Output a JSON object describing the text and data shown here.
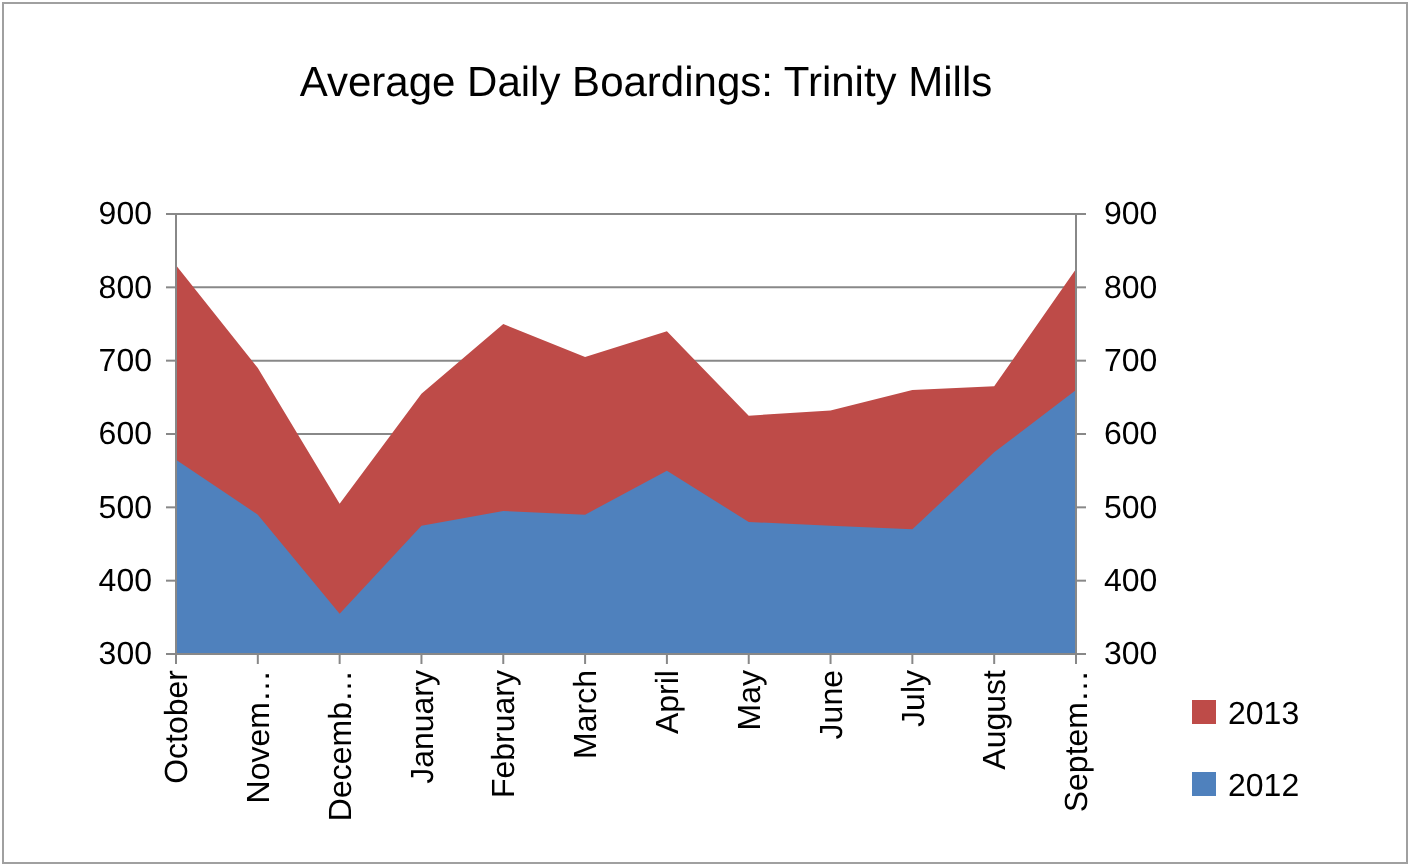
{
  "chart_data": {
    "type": "area",
    "title": "Average Daily Boardings: Trinity Mills",
    "categories": [
      "October",
      "Novem…",
      "Decemb…",
      "January",
      "February",
      "March",
      "April",
      "May",
      "June",
      "July",
      "August",
      "Septem…"
    ],
    "series": [
      {
        "name": "2013",
        "color": "#be4b48",
        "values": [
          830,
          690,
          505,
          655,
          750,
          705,
          740,
          625,
          632,
          660,
          665,
          825
        ]
      },
      {
        "name": "2012",
        "color": "#4f81bd",
        "values": [
          565,
          490,
          355,
          475,
          495,
          490,
          550,
          480,
          475,
          470,
          575,
          660
        ]
      }
    ],
    "ylim": [
      300,
      900
    ],
    "yticks": [
      300,
      400,
      500,
      600,
      700,
      800,
      900
    ],
    "y2lim": [
      300,
      900
    ],
    "y2ticks": [
      300,
      400,
      500,
      600,
      700,
      800,
      900
    ],
    "grid": "y",
    "legend": "right"
  }
}
